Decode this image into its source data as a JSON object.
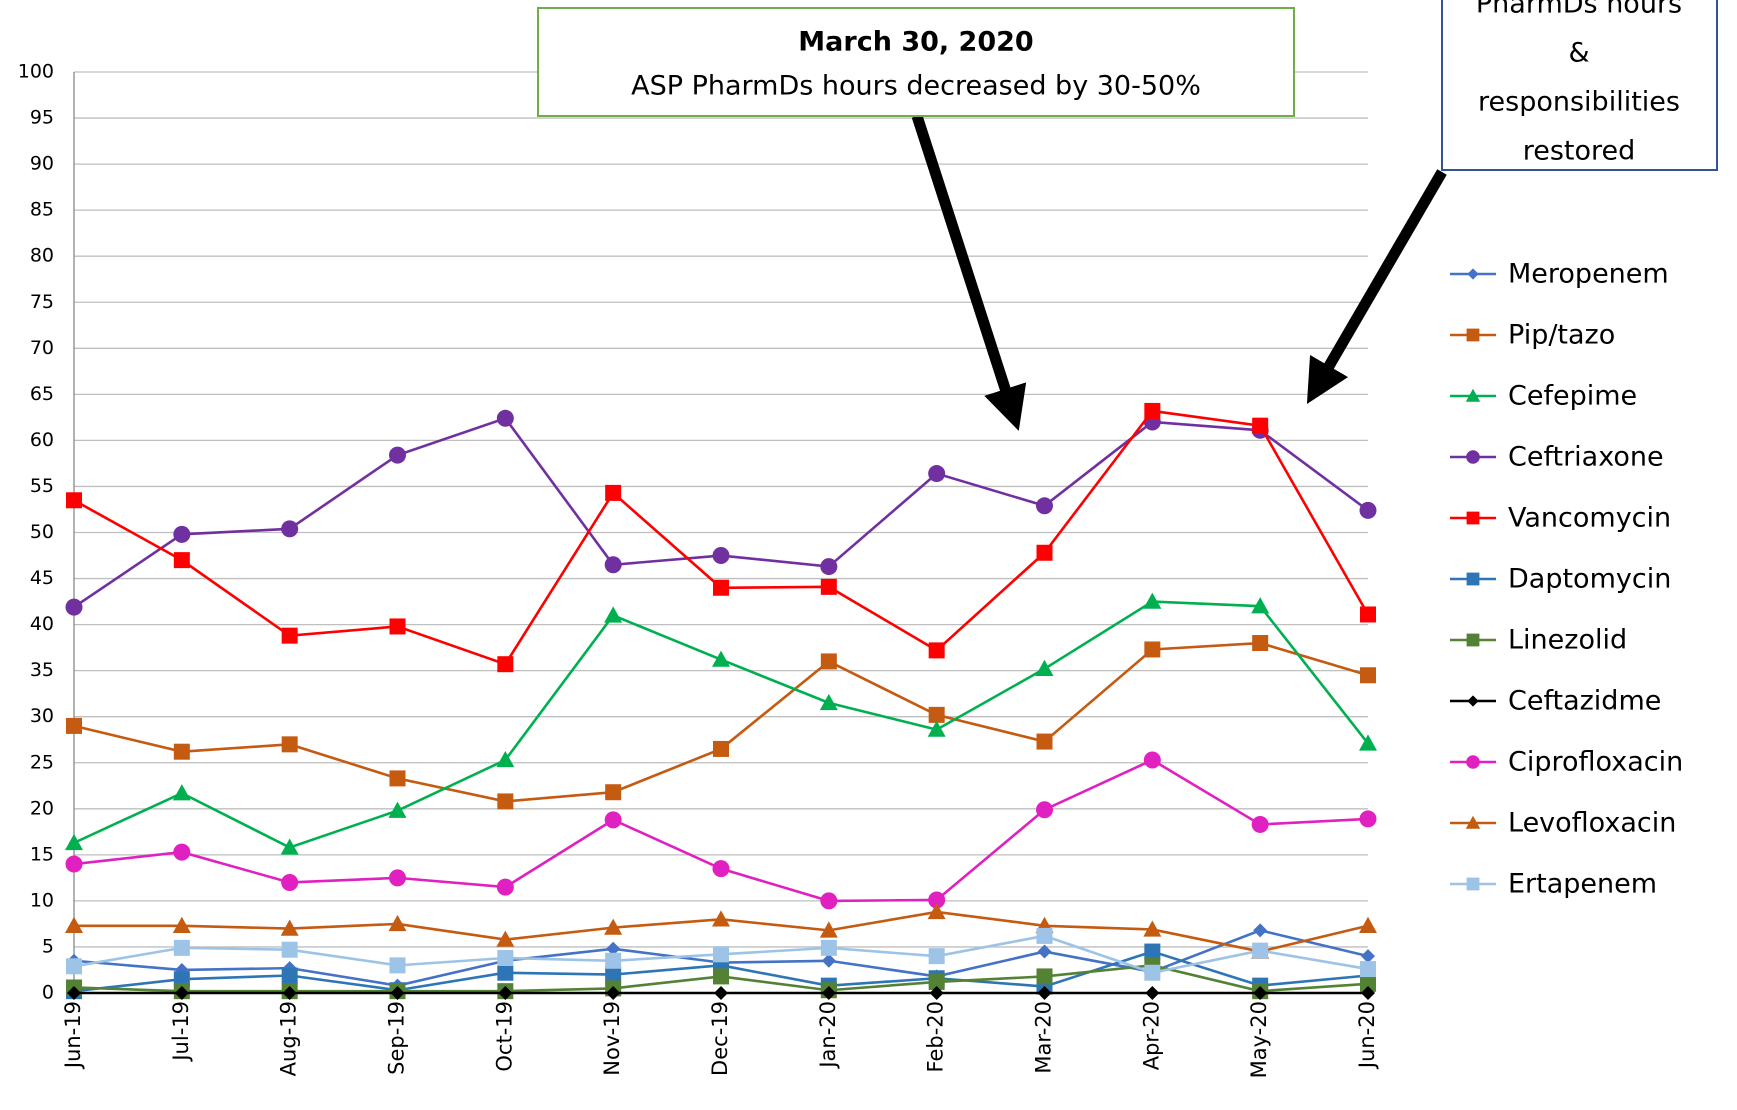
{
  "chart_data": {
    "type": "line",
    "categories": [
      "Jun-19",
      "Jul-19",
      "Aug-19",
      "Sep-19",
      "Oct-19",
      "Nov-19",
      "Dec-19",
      "Jan-20",
      "Feb-20",
      "Mar-20",
      "Apr-20",
      "May-20",
      "Jun-20"
    ],
    "ylim": [
      0,
      100
    ],
    "yticks": [
      0,
      5,
      10,
      15,
      20,
      25,
      30,
      35,
      40,
      45,
      50,
      55,
      60,
      65,
      70,
      75,
      80,
      85,
      90,
      95,
      100
    ],
    "grid": true,
    "annotations": [
      {
        "title": "March 30, 2020",
        "text": "ASP PharmDs hours decreased by 30-50%"
      },
      {
        "lines": [
          "PharmDs hours",
          "&",
          "responsibilities",
          "restored"
        ]
      }
    ],
    "series": [
      {
        "name": "Meropenem",
        "color": "#4472c4",
        "marker": "diamond",
        "values": [
          3.5,
          2.5,
          2.7,
          0.8,
          3.5,
          4.8,
          3.3,
          3.5,
          1.8,
          4.5,
          2.3,
          6.8,
          4.0
        ]
      },
      {
        "name": "Pip/tazo",
        "color": "#c55a11",
        "marker": "square",
        "values": [
          29,
          26.2,
          27,
          23.3,
          20.8,
          21.8,
          26.5,
          36,
          30.2,
          27.3,
          37.3,
          38,
          34.5
        ]
      },
      {
        "name": "Cefepime",
        "color": "#00b050",
        "marker": "triangle",
        "values": [
          16.3,
          21.7,
          15.8,
          19.8,
          25.3,
          41,
          36.2,
          31.5,
          28.6,
          35.2,
          42.5,
          42,
          27.1
        ]
      },
      {
        "name": "Ceftriaxone",
        "color": "#7030a0",
        "marker": "circle",
        "values": [
          41.9,
          49.8,
          50.4,
          58.4,
          62.4,
          46.5,
          47.5,
          46.3,
          56.4,
          52.9,
          62,
          61.1,
          52.4
        ]
      },
      {
        "name": "Vancomycin",
        "color": "#ff0000",
        "marker": "square",
        "values": [
          53.5,
          47,
          38.8,
          39.8,
          35.7,
          54.3,
          44,
          44.1,
          37.2,
          47.8,
          63.2,
          61.6,
          41.1
        ]
      },
      {
        "name": "Daptomycin",
        "color": "#2e75b6",
        "marker": "square",
        "values": [
          0.2,
          1.5,
          1.9,
          0.3,
          2.2,
          2,
          3,
          0.8,
          1.6,
          0.7,
          4.5,
          0.8,
          1.9
        ]
      },
      {
        "name": "Linezolid",
        "color": "#548235",
        "marker": "square",
        "values": [
          0.6,
          0.2,
          0.2,
          0.2,
          0.2,
          0.5,
          1.8,
          0.3,
          1.2,
          1.8,
          3.0,
          0.2,
          1.0
        ]
      },
      {
        "name": "Ceftazidme",
        "color": "#000000",
        "marker": "diamond",
        "values": [
          0,
          0,
          0,
          0,
          0,
          0,
          0,
          0,
          0,
          0,
          0,
          0,
          0
        ]
      },
      {
        "name": "Ciprofloxacin",
        "color": "#e020c0",
        "marker": "circle",
        "values": [
          14,
          15.3,
          12,
          12.5,
          11.5,
          18.8,
          13.5,
          10,
          10.1,
          19.9,
          25.3,
          18.3,
          18.9
        ]
      },
      {
        "name": "Levofloxacin",
        "color": "#c55a11",
        "marker": "triangle",
        "values": [
          7.3,
          7.3,
          7,
          7.5,
          5.8,
          7.1,
          8,
          6.8,
          8.8,
          7.3,
          6.9,
          4.5,
          7.3
        ]
      },
      {
        "name": "Ertapenem",
        "color": "#9dc3e6",
        "marker": "square",
        "values": [
          2.9,
          4.9,
          4.7,
          3,
          3.8,
          3.5,
          4.2,
          4.9,
          4,
          6.2,
          2.2,
          4.6,
          2.6
        ]
      }
    ]
  }
}
